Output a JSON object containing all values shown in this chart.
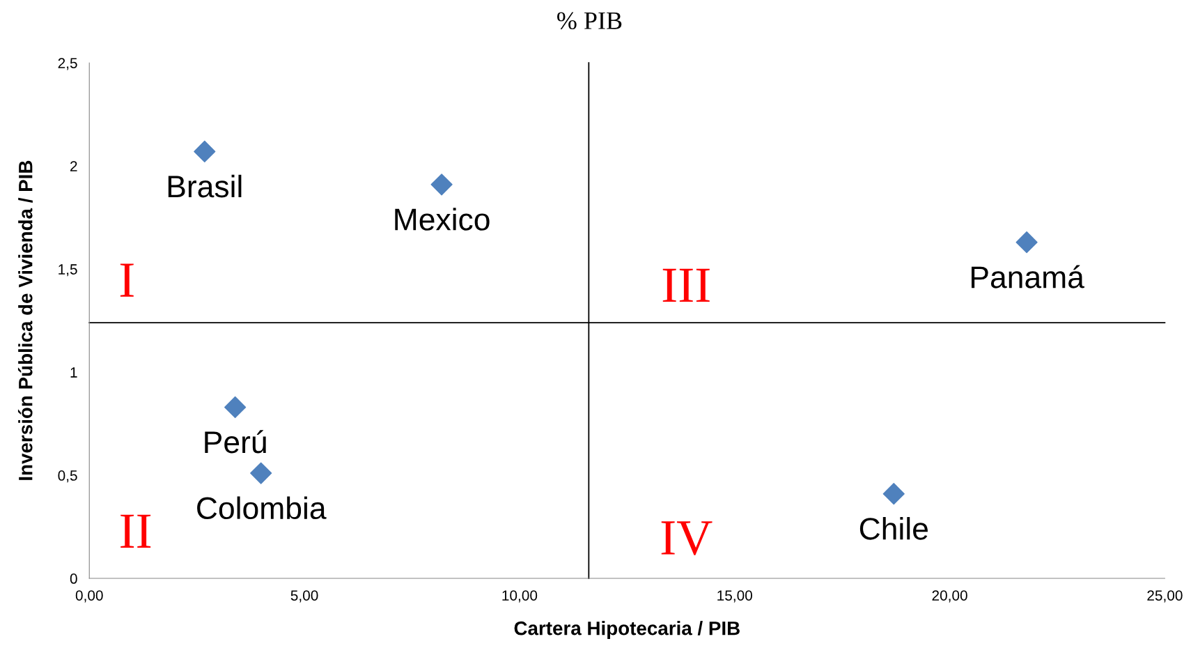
{
  "chart_data": {
    "type": "scatter",
    "title": "% PIB",
    "xlabel": "Cartera Hipotecaria / PIB",
    "ylabel": "Inversión Pública de Vivienda / PIB",
    "x": [
      2.68,
      8.19,
      21.79,
      3.39,
      3.99,
      18.7
    ],
    "series": [
      {
        "color": "#4f81bd",
        "values": [
          2.07,
          1.91,
          1.63,
          0.83,
          0.51,
          0.41
        ]
      }
    ],
    "marker": "diamond",
    "grid": false,
    "xlim": [
      0,
      25
    ],
    "xticks": [
      {
        "value": 0,
        "label": "0,00"
      },
      {
        "value": 5,
        "label": "5,00"
      },
      {
        "value": 10,
        "label": "10,00"
      },
      {
        "value": 15,
        "label": "15,00"
      },
      {
        "value": 20,
        "label": "20,00"
      },
      {
        "value": 25,
        "label": "25,00"
      }
    ],
    "ylim": [
      0,
      2.5
    ],
    "yticks": [
      0,
      {
        "value": 0.5,
        "label": "0,5"
      },
      1,
      {
        "value": 1.5,
        "label": "1,5"
      },
      2,
      {
        "value": 2.5,
        "label": "2,5"
      }
    ],
    "ref_lines": [
      {
        "axis": "x",
        "value": 11.61,
        "color": "#000000"
      },
      {
        "axis": "y",
        "value": 1.24,
        "color": "#000000"
      }
    ],
    "annotations": [
      {
        "text": "Brasil",
        "x": 2.68,
        "y": 2.07
      },
      {
        "text": "Mexico",
        "x": 8.19,
        "y": 1.91
      },
      {
        "text": "Panamá",
        "x": 21.79,
        "y": 1.63
      },
      {
        "text": "Perú",
        "x": 3.39,
        "y": 0.83
      },
      {
        "text": "Colombia",
        "x": 3.99,
        "y": 0.51
      },
      {
        "text": "Chile",
        "x": 18.7,
        "y": 0.41
      },
      "I",
      "II",
      "III",
      "IV"
    ]
  }
}
